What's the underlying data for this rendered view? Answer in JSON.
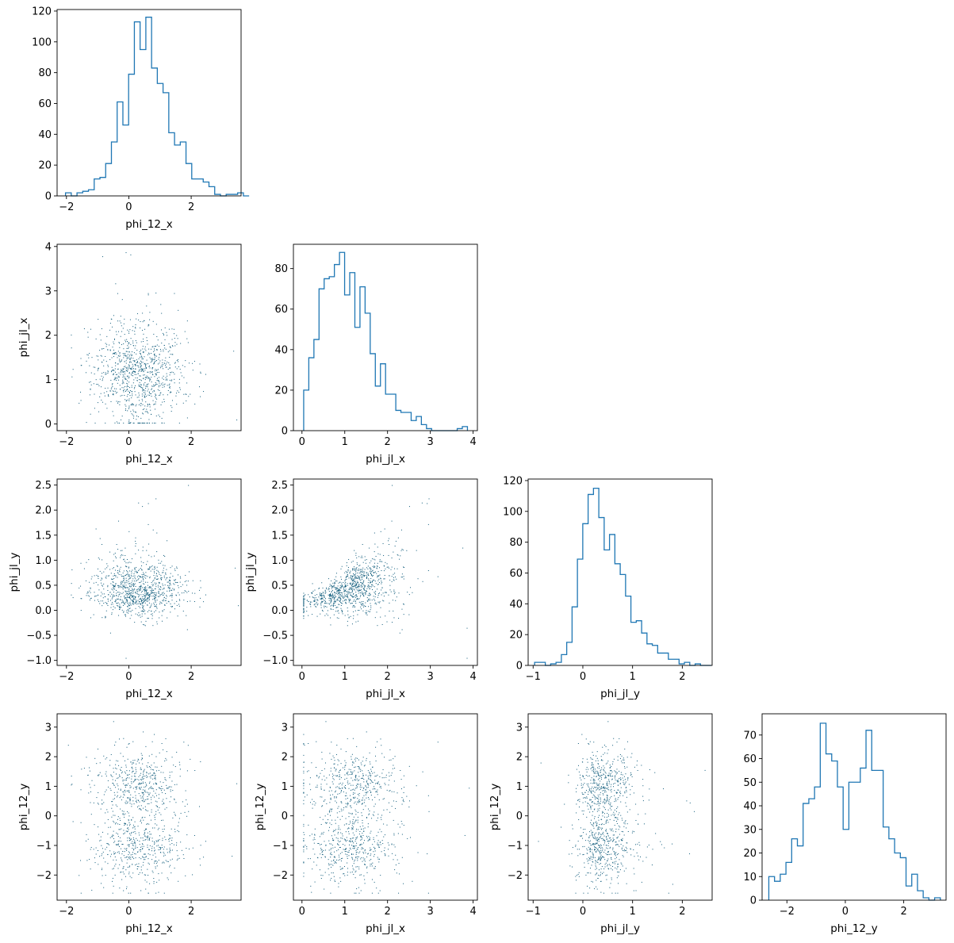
{
  "figure": {
    "type": "corner-plot",
    "variables": [
      "phi_12_x",
      "phi_jl_x",
      "phi_jl_y",
      "phi_12_y"
    ]
  },
  "chart_data": [
    {
      "id": "hist-phi-12-x",
      "type": "histogram",
      "xlabel": "phi_12_x",
      "ylabel": "",
      "xlim": [
        -2.3,
        3.6
      ],
      "ylim": [
        0,
        121
      ],
      "xticks": [
        -2,
        0,
        2
      ],
      "xtick_labels": [
        "−2",
        "0",
        "2"
      ],
      "yticks": [
        0,
        20,
        40,
        60,
        80,
        100,
        120
      ],
      "ytick_labels": [
        "0",
        "20",
        "40",
        "60",
        "80",
        "100",
        "120"
      ],
      "bin_start": -2.03,
      "bin_width": 0.184,
      "counts": [
        2,
        0,
        2,
        3,
        4,
        11,
        12,
        21,
        35,
        61,
        46,
        79,
        113,
        95,
        116,
        83,
        73,
        67,
        41,
        33,
        35,
        21,
        11,
        11,
        9,
        6,
        1,
        0,
        1,
        1,
        2,
        0
      ],
      "color": "#1f77b4"
    },
    {
      "id": "scatter-phi-12-x-vs-phi-jl-x",
      "type": "scatter",
      "xlabel": "phi_12_x",
      "ylabel": "phi_jl_x",
      "xlim": [
        -2.3,
        3.6
      ],
      "ylim": [
        -0.15,
        4.05
      ],
      "xticks": [
        -2,
        0,
        2
      ],
      "xtick_labels": [
        "−2",
        "0",
        "2"
      ],
      "yticks": [
        0,
        1,
        2,
        3,
        4
      ],
      "ytick_labels": [
        "0",
        "1",
        "2",
        "3",
        "4"
      ],
      "outliers": [
        [
          -0.85,
          3.78
        ],
        [
          -0.1,
          3.87
        ],
        [
          0.05,
          3.82
        ],
        [
          3.35,
          1.65
        ],
        [
          3.45,
          0.1
        ],
        [
          1.45,
          2.95
        ]
      ],
      "color": "#1f77b4"
    },
    {
      "id": "hist-phi-jl-x",
      "type": "histogram",
      "xlabel": "phi_jl_x",
      "ylabel": "",
      "xlim": [
        -0.2,
        4.1
      ],
      "ylim": [
        0,
        92
      ],
      "xticks": [
        0,
        1,
        2,
        3,
        4
      ],
      "xtick_labels": [
        "0",
        "1",
        "2",
        "3",
        "4"
      ],
      "yticks": [
        0,
        20,
        40,
        60,
        80
      ],
      "ytick_labels": [
        "0",
        "20",
        "40",
        "60",
        "80"
      ],
      "bin_start": 0.04,
      "bin_width": 0.1196,
      "counts": [
        20,
        36,
        45,
        70,
        75,
        76,
        82,
        88,
        67,
        78,
        51,
        71,
        58,
        38,
        22,
        33,
        18,
        18,
        10,
        9,
        9,
        5,
        7,
        3,
        1,
        0,
        0,
        0,
        0,
        0,
        1,
        2
      ],
      "color": "#1f77b4"
    },
    {
      "id": "scatter-phi-12-x-vs-phi-jl-y",
      "type": "scatter",
      "xlabel": "phi_12_x",
      "ylabel": "phi_jl_y",
      "xlim": [
        -2.3,
        3.6
      ],
      "ylim": [
        -1.1,
        2.62
      ],
      "xticks": [
        -2,
        0,
        2
      ],
      "xtick_labels": [
        "−2",
        "0",
        "2"
      ],
      "yticks": [
        -1.0,
        -0.5,
        0.0,
        0.5,
        1.0,
        1.5,
        2.0,
        2.5
      ],
      "ytick_labels": [
        "−1.0",
        "−0.5",
        "0.0",
        "0.5",
        "1.0",
        "1.5",
        "2.0",
        "2.5"
      ],
      "outliers": [
        [
          1.9,
          2.5
        ],
        [
          0.3,
          2.15
        ],
        [
          -0.1,
          -0.95
        ],
        [
          3.4,
          0.85
        ],
        [
          3.5,
          0.1
        ]
      ],
      "color": "#1f77b4"
    },
    {
      "id": "scatter-phi-jl-x-vs-phi-jl-y",
      "type": "scatter",
      "xlabel": "phi_jl_x",
      "ylabel": "phi_jl_y",
      "xlim": [
        -0.2,
        4.1
      ],
      "ylim": [
        -1.1,
        2.62
      ],
      "xticks": [
        0,
        1,
        2,
        3,
        4
      ],
      "xtick_labels": [
        "0",
        "1",
        "2",
        "3",
        "4"
      ],
      "yticks": [
        -1.0,
        -0.5,
        0.0,
        0.5,
        1.0,
        1.5,
        2.0,
        2.5
      ],
      "ytick_labels": [
        "−1.0",
        "−0.5",
        "0.0",
        "0.5",
        "1.0",
        "1.5",
        "2.0",
        "2.5"
      ],
      "outliers": [
        [
          2.1,
          2.5
        ],
        [
          2.8,
          2.15
        ],
        [
          3.75,
          1.25
        ],
        [
          3.85,
          -0.95
        ],
        [
          3.85,
          -0.35
        ]
      ],
      "color": "#1f77b4"
    },
    {
      "id": "hist-phi-jl-y",
      "type": "histogram",
      "xlabel": "phi_jl_y",
      "ylabel": "",
      "xlim": [
        -1.1,
        2.6
      ],
      "ylim": [
        0,
        121
      ],
      "xticks": [
        -1,
        0,
        1,
        2
      ],
      "xtick_labels": [
        "−1",
        "0",
        "1",
        "2"
      ],
      "yticks": [
        0,
        20,
        40,
        60,
        80,
        100,
        120
      ],
      "ytick_labels": [
        "0",
        "20",
        "40",
        "60",
        "80",
        "100",
        "120"
      ],
      "bin_start": -0.97,
      "bin_width": 0.1076,
      "counts": [
        2,
        2,
        0,
        1,
        2,
        7,
        15,
        38,
        69,
        92,
        111,
        115,
        96,
        75,
        85,
        66,
        59,
        45,
        28,
        29,
        21,
        14,
        13,
        8,
        8,
        4,
        4,
        1,
        2,
        0,
        1,
        0,
        0
      ],
      "color": "#1f77b4"
    },
    {
      "id": "scatter-phi-12-x-vs-phi-12-y",
      "type": "scatter",
      "xlabel": "phi_12_x",
      "ylabel": "phi_12_y",
      "xlim": [
        -2.3,
        3.6
      ],
      "ylim": [
        -2.85,
        3.45
      ],
      "xticks": [
        -2,
        0,
        2
      ],
      "xtick_labels": [
        "−2",
        "0",
        "2"
      ],
      "yticks": [
        -2,
        -1,
        0,
        1,
        2,
        3
      ],
      "ytick_labels": [
        "−2",
        "−1",
        "0",
        "1",
        "2",
        "3"
      ],
      "outliers": [
        [
          -0.5,
          3.2
        ],
        [
          0.45,
          2.85
        ],
        [
          -1.95,
          2.4
        ],
        [
          3.45,
          1.1
        ],
        [
          3.3,
          -1.35
        ],
        [
          -1.2,
          -2.5
        ]
      ],
      "color": "#1f77b4"
    },
    {
      "id": "scatter-phi-jl-x-vs-phi-12-y",
      "type": "scatter",
      "xlabel": "phi_jl_x",
      "ylabel": "phi_12_y",
      "xlim": [
        -0.2,
        4.1
      ],
      "ylim": [
        -2.85,
        3.45
      ],
      "xticks": [
        0,
        1,
        2,
        3,
        4
      ],
      "xtick_labels": [
        "0",
        "1",
        "2",
        "3",
        "4"
      ],
      "yticks": [
        -2,
        -1,
        0,
        1,
        2,
        3
      ],
      "ytick_labels": [
        "−2",
        "−1",
        "0",
        "1",
        "2",
        "3"
      ],
      "outliers": [
        [
          0.55,
          3.2
        ],
        [
          1.5,
          2.85
        ],
        [
          3.9,
          0.95
        ],
        [
          3.8,
          -0.65
        ],
        [
          0.05,
          2.4
        ]
      ],
      "color": "#1f77b4"
    },
    {
      "id": "scatter-phi-jl-y-vs-phi-12-y",
      "type": "scatter",
      "xlabel": "phi_jl_y",
      "ylabel": "phi_12_y",
      "xlim": [
        -1.1,
        2.6
      ],
      "ylim": [
        -2.85,
        3.45
      ],
      "xticks": [
        -1,
        0,
        1,
        2
      ],
      "xtick_labels": [
        "−1",
        "0",
        "1",
        "2"
      ],
      "yticks": [
        -2,
        -1,
        0,
        1,
        2,
        3
      ],
      "ytick_labels": [
        "−2",
        "−1",
        "0",
        "1",
        "2",
        "3"
      ],
      "outliers": [
        [
          0.5,
          3.2
        ],
        [
          -0.85,
          1.8
        ],
        [
          -0.9,
          -0.85
        ],
        [
          2.45,
          1.55
        ],
        [
          2.15,
          0.45
        ],
        [
          1.8,
          -2.3
        ]
      ],
      "color": "#1f77b4"
    },
    {
      "id": "hist-phi-12-y",
      "type": "histogram",
      "xlabel": "phi_12_y",
      "ylabel": "",
      "xlim": [
        -2.85,
        3.45
      ],
      "ylim": [
        0,
        79
      ],
      "xticks": [
        -2,
        0,
        2
      ],
      "xtick_labels": [
        "−2",
        "0",
        "2"
      ],
      "yticks": [
        0,
        10,
        20,
        30,
        40,
        50,
        60,
        70
      ],
      "ytick_labels": [
        "0",
        "10",
        "20",
        "30",
        "40",
        "50",
        "60",
        "70"
      ],
      "bin_start": -2.62,
      "bin_width": 0.1958,
      "counts": [
        10,
        8,
        11,
        16,
        26,
        23,
        41,
        43,
        48,
        75,
        62,
        59,
        48,
        30,
        50,
        50,
        56,
        72,
        55,
        55,
        31,
        26,
        20,
        18,
        6,
        11,
        4,
        1,
        0,
        1
      ],
      "color": "#1f77b4"
    }
  ]
}
